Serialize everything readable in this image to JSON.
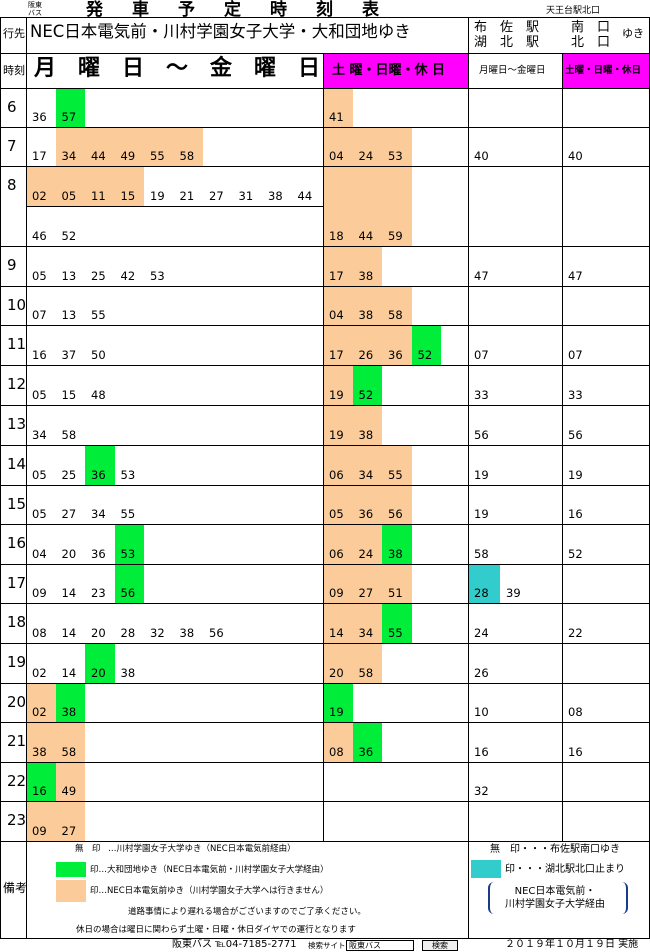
{
  "header": {
    "company": "阪東\nバス",
    "title": "発　車　予　定　時　刻　表",
    "top_right_note": "天王台駅北口",
    "dest_label": "行先",
    "dest_main": "NEC日本電気前・川村学園女子大学・大和団地ゆき",
    "dest_right_a": "布　佐　駅\n湖　北　駅",
    "dest_right_b": "南　口\n北　口",
    "dest_right_suffix": "ゆき",
    "time_label": "時刻",
    "weekday_label": "月　曜　日　～　金　曜　日",
    "holiday_label": "土 曜・日曜・休 日",
    "weekday_label_small": "月曜日～金曜日",
    "holiday_label_small": "土曜・日曜・休日"
  },
  "colors": {
    "green": "#00ee3a",
    "peach": "#fbcb9a",
    "magenta": "#ff00ff",
    "cyan": "#33cccc"
  },
  "hours": [
    "6",
    "7",
    "8",
    "9",
    "10",
    "11",
    "12",
    "13",
    "14",
    "15",
    "16",
    "17",
    "18",
    "19",
    "20",
    "21",
    "22",
    "23"
  ],
  "weekday": [
    [
      [
        [
          "36",
          ""
        ],
        [
          "57",
          "g"
        ]
      ]
    ],
    [
      [
        [
          "17",
          ""
        ],
        [
          "34",
          "p"
        ],
        [
          "44",
          "p"
        ],
        [
          "49",
          "p"
        ],
        [
          "55",
          "p"
        ],
        [
          "58",
          "p"
        ]
      ]
    ],
    [
      [
        [
          "02",
          "p"
        ],
        [
          "05",
          "p"
        ],
        [
          "11",
          "p"
        ],
        [
          "15",
          "p"
        ],
        [
          "19",
          ""
        ],
        [
          "21",
          ""
        ],
        [
          "27",
          ""
        ],
        [
          "31",
          ""
        ],
        [
          "38",
          ""
        ],
        [
          "44",
          ""
        ]
      ],
      [
        [
          "46",
          ""
        ],
        [
          "52",
          ""
        ]
      ]
    ],
    [
      [
        [
          "05",
          ""
        ],
        [
          "13",
          ""
        ],
        [
          "25",
          ""
        ],
        [
          "42",
          ""
        ],
        [
          "53",
          ""
        ]
      ]
    ],
    [
      [
        [
          "07",
          ""
        ],
        [
          "13",
          ""
        ],
        [
          "55",
          ""
        ]
      ]
    ],
    [
      [
        [
          "16",
          ""
        ],
        [
          "37",
          ""
        ],
        [
          "50",
          ""
        ]
      ]
    ],
    [
      [
        [
          "05",
          ""
        ],
        [
          "15",
          ""
        ],
        [
          "48",
          ""
        ]
      ]
    ],
    [
      [
        [
          "34",
          ""
        ],
        [
          "58",
          ""
        ]
      ]
    ],
    [
      [
        [
          "05",
          ""
        ],
        [
          "25",
          ""
        ],
        [
          "36",
          "g"
        ],
        [
          "53",
          ""
        ]
      ]
    ],
    [
      [
        [
          "05",
          ""
        ],
        [
          "27",
          ""
        ],
        [
          "34",
          ""
        ],
        [
          "55",
          ""
        ]
      ]
    ],
    [
      [
        [
          "04",
          ""
        ],
        [
          "20",
          ""
        ],
        [
          "36",
          ""
        ],
        [
          "53",
          "g"
        ]
      ]
    ],
    [
      [
        [
          "09",
          ""
        ],
        [
          "14",
          ""
        ],
        [
          "23",
          ""
        ],
        [
          "56",
          "g"
        ]
      ]
    ],
    [
      [
        [
          "08",
          ""
        ],
        [
          "14",
          ""
        ],
        [
          "20",
          ""
        ],
        [
          "28",
          ""
        ],
        [
          "32",
          ""
        ],
        [
          "38",
          ""
        ],
        [
          "56",
          ""
        ]
      ]
    ],
    [
      [
        [
          "02",
          ""
        ],
        [
          "14",
          ""
        ],
        [
          "20",
          "g"
        ],
        [
          "38",
          ""
        ]
      ]
    ],
    [
      [
        [
          "02",
          "p"
        ],
        [
          "38",
          "g"
        ]
      ]
    ],
    [
      [
        [
          "38",
          "p"
        ],
        [
          "58",
          "p"
        ]
      ]
    ],
    [
      [
        [
          "16",
          "g"
        ],
        [
          "49",
          "p"
        ]
      ]
    ],
    [
      [
        [
          "09",
          "p"
        ],
        [
          "27",
          "p"
        ]
      ]
    ]
  ],
  "holiday": [
    [
      [
        "41",
        "p"
      ]
    ],
    [
      [
        "04",
        "p"
      ],
      [
        "24",
        "p"
      ],
      [
        "53",
        "p"
      ]
    ],
    [
      [
        "18",
        "p"
      ],
      [
        "44",
        "p"
      ],
      [
        "59",
        "p"
      ]
    ],
    [
      [
        "17",
        "p"
      ],
      [
        "38",
        "p"
      ]
    ],
    [
      [
        "04",
        "p"
      ],
      [
        "38",
        "p"
      ],
      [
        "58",
        "p"
      ]
    ],
    [
      [
        "17",
        "p"
      ],
      [
        "26",
        "p"
      ],
      [
        "36",
        "p"
      ],
      [
        "52",
        "g"
      ]
    ],
    [
      [
        "19",
        "p"
      ],
      [
        "52",
        "g"
      ]
    ],
    [
      [
        "19",
        "p"
      ],
      [
        "38",
        "p"
      ]
    ],
    [
      [
        "06",
        "p"
      ],
      [
        "34",
        "p"
      ],
      [
        "55",
        "p"
      ]
    ],
    [
      [
        "05",
        "p"
      ],
      [
        "36",
        "p"
      ],
      [
        "56",
        "p"
      ]
    ],
    [
      [
        "06",
        "p"
      ],
      [
        "24",
        "p"
      ],
      [
        "38",
        "g"
      ]
    ],
    [
      [
        "09",
        "p"
      ],
      [
        "27",
        "p"
      ],
      [
        "51",
        "p"
      ]
    ],
    [
      [
        "14",
        "p"
      ],
      [
        "34",
        "p"
      ],
      [
        "55",
        "g"
      ]
    ],
    [
      [
        "20",
        "p"
      ],
      [
        "58",
        "p"
      ]
    ],
    [
      [
        "19",
        "g"
      ]
    ],
    [
      [
        "08",
        "p"
      ],
      [
        "36",
        "g"
      ]
    ],
    [],
    []
  ],
  "fusa_weekday": [
    [],
    [
      [
        "40",
        ""
      ]
    ],
    [],
    [
      [
        "47",
        ""
      ]
    ],
    [],
    [
      [
        "07",
        ""
      ]
    ],
    [
      [
        "33",
        ""
      ]
    ],
    [
      [
        "56",
        ""
      ]
    ],
    [
      [
        "19",
        ""
      ]
    ],
    [
      [
        "19",
        ""
      ]
    ],
    [
      [
        "58",
        ""
      ]
    ],
    [
      [
        "28",
        "c"
      ],
      [
        "39",
        ""
      ]
    ],
    [
      [
        "24",
        ""
      ]
    ],
    [
      [
        "26",
        ""
      ]
    ],
    [
      [
        "10",
        ""
      ]
    ],
    [
      [
        "16",
        ""
      ]
    ],
    [
      [
        "32",
        ""
      ]
    ],
    []
  ],
  "fusa_holiday": [
    [],
    [
      [
        "40",
        ""
      ]
    ],
    [],
    [
      [
        "47",
        ""
      ]
    ],
    [],
    [
      [
        "07",
        ""
      ]
    ],
    [
      [
        "33",
        ""
      ]
    ],
    [
      [
        "56",
        ""
      ]
    ],
    [
      [
        "19",
        ""
      ]
    ],
    [
      [
        "16",
        ""
      ]
    ],
    [
      [
        "52",
        ""
      ]
    ],
    [],
    [
      [
        "22",
        ""
      ]
    ],
    [],
    [
      [
        "08",
        ""
      ]
    ],
    [
      [
        "16",
        ""
      ]
    ],
    [],
    []
  ],
  "legend": {
    "label": "備考",
    "none_mark": "無　印",
    "item1": "…川村学園女子大学ゆき（NEC日本電気前経由）",
    "item2": "印…大和団地ゆき（NEC日本電気前・川村学園女子大学経由）",
    "item3": "印…NEC日本電気前ゆき（川村学園女子大学へは行きません）",
    "note1": "道路事情により遅れる場合がございますのでご了承ください。",
    "note2": "休日の場合は曜日に関わらず土曜・日曜・休日ダイヤでの運行となります",
    "right_item1": "無　印・・・布佐駅南口ゆき",
    "right_item2": "印・・・湖北駅北口止まり",
    "right_note": "NEC日本電気前・\n川村学園女子大学経由"
  },
  "footer": {
    "company": "阪東バス",
    "tel": "℡04-7185-2771",
    "search_label": "検索サイト",
    "search_value": "阪東バス",
    "search_button": "検索",
    "date": "２０１９年１０月１９日 実施"
  }
}
